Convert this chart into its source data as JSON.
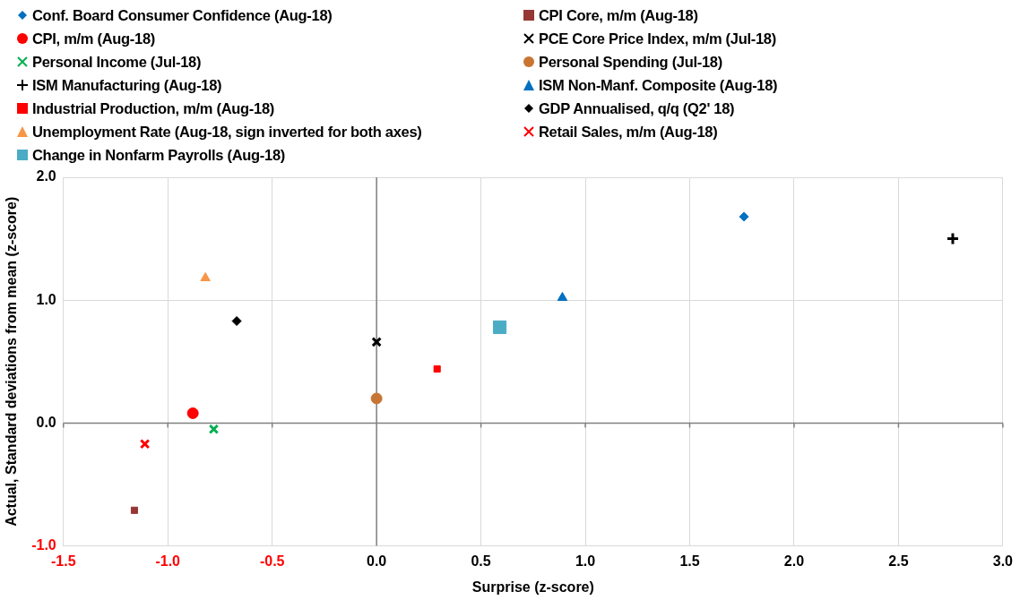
{
  "chart_data": {
    "type": "scatter",
    "xlabel": "Surprise (z-score)",
    "ylabel": "Actual, Standard deviations from mean (z-score)",
    "xlim": [
      -1.5,
      3.0
    ],
    "ylim": [
      -1.0,
      2.0
    ],
    "xticks": [
      {
        "value": -1.5,
        "label": "-1.5"
      },
      {
        "value": -1.0,
        "label": "-1.0"
      },
      {
        "value": -0.5,
        "label": "-0.5"
      },
      {
        "value": 0,
        "label": "0.0"
      },
      {
        "value": 0.5,
        "label": "0.5"
      },
      {
        "value": 1.0,
        "label": "1.0"
      },
      {
        "value": 1.5,
        "label": "1.5"
      },
      {
        "value": 2.0,
        "label": "2.0"
      },
      {
        "value": 2.5,
        "label": "2.5"
      },
      {
        "value": 3.0,
        "label": "3.0"
      }
    ],
    "yticks": [
      {
        "value": -1.0,
        "label": "-1.0"
      },
      {
        "value": 0,
        "label": "0.0"
      },
      {
        "value": 1.0,
        "label": "1.0"
      },
      {
        "value": 2.0,
        "label": "2.0"
      }
    ],
    "grid": true,
    "legend": "top",
    "series": [
      {
        "name": "Conf. Board Consumer Confidence (Aug-18)",
        "color": "#0070c0",
        "marker": "diamond",
        "x": [
          1.76
        ],
        "values": [
          1.68
        ]
      },
      {
        "name": "CPI Core, m/m (Aug-18)",
        "color": "#953735",
        "marker": "square",
        "x": [
          -1.16
        ],
        "values": [
          -0.71
        ]
      },
      {
        "name": "CPI, m/m (Aug-18)",
        "color": "#ff0000",
        "marker": "circle",
        "x": [
          -0.88
        ],
        "values": [
          0.08
        ]
      },
      {
        "name": "PCE Core Price Index, m/m (Jul-18)",
        "color": "#000000",
        "marker": "cross",
        "x": [
          0.0
        ],
        "values": [
          0.66
        ]
      },
      {
        "name": "Personal Income (Jul-18)",
        "color": "#00b050",
        "marker": "cross",
        "x": [
          -0.78
        ],
        "values": [
          -0.05
        ]
      },
      {
        "name": "Personal Spending (Jul-18)",
        "color": "#c87533",
        "marker": "circle",
        "x": [
          0.0
        ],
        "values": [
          0.2
        ]
      },
      {
        "name": "ISM Manufacturing (Aug-18)",
        "color": "#000000",
        "marker": "plus",
        "x": [
          2.76
        ],
        "values": [
          1.5
        ]
      },
      {
        "name": "ISM Non-Manf. Composite (Aug-18)",
        "color": "#0070c0",
        "marker": "triangle",
        "x": [
          0.89
        ],
        "values": [
          1.02
        ]
      },
      {
        "name": "Industrial Production, m/m  (Aug-18)",
        "color": "#ff0000",
        "marker": "square",
        "x": [
          0.29
        ],
        "values": [
          0.44
        ]
      },
      {
        "name": "GDP Annualised, q/q (Q2' 18)",
        "color": "#000000",
        "marker": "diamond",
        "x": [
          -0.67
        ],
        "values": [
          0.83
        ]
      },
      {
        "name": "Unemployment Rate (Aug-18, sign inverted for both axes)",
        "color": "#f79646",
        "marker": "triangle",
        "x": [
          -0.82
        ],
        "values": [
          1.18
        ]
      },
      {
        "name": "Retail Sales, m/m (Aug-18)",
        "color": "#ff0000",
        "marker": "cross",
        "x": [
          -1.11
        ],
        "values": [
          -0.17
        ]
      },
      {
        "name": "Change in Nonfarm Payrolls (Aug-18)",
        "color": "#4bacc6",
        "marker": "square",
        "x": [
          0.59
        ],
        "values": [
          0.78
        ]
      }
    ]
  }
}
